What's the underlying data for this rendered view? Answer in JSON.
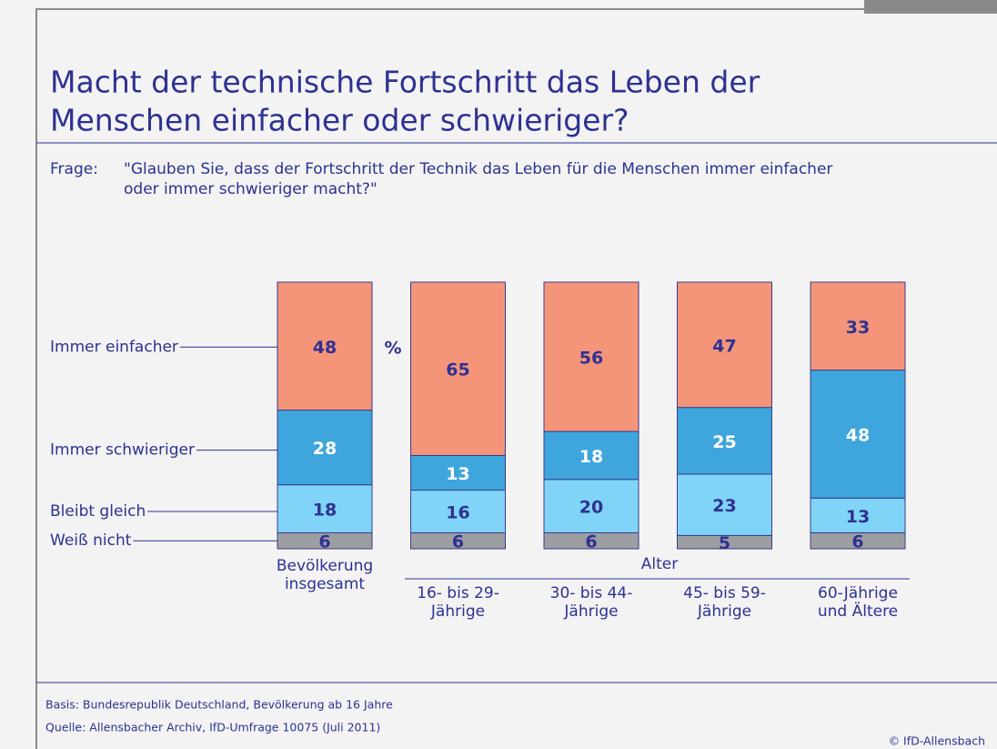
{
  "chart_data": {
    "type": "stacked_bar",
    "title": [
      "Macht der technische Fortschritt das Leben der",
      "Menschen einfacher oder schwieriger?"
    ],
    "question_label": "Frage:",
    "question": [
      "\"Glauben Sie, dass der Fortschritt der Technik das Leben für die Menschen immer einfacher",
      "oder immer schwieriger macht?\""
    ],
    "unit_label": "%",
    "group_label": "Alter",
    "categories": [
      [
        "Bevölkerung",
        "insgesamt"
      ],
      [
        "16- bis 29-",
        "Jährige"
      ],
      [
        "30- bis 44-",
        "Jährige"
      ],
      [
        "45- bis 59-",
        "Jährige"
      ],
      [
        "60-Jährige",
        "und Ältere"
      ]
    ],
    "series": [
      {
        "name": "Weiß nicht",
        "color": "#9d9ea2",
        "values": [
          6,
          6,
          6,
          5,
          6
        ]
      },
      {
        "name": "Bleibt gleich",
        "color": "#80d4f7",
        "values": [
          18,
          16,
          20,
          23,
          13
        ]
      },
      {
        "name": "Immer schwieriger",
        "color": "#3ea6dc",
        "values": [
          28,
          13,
          18,
          25,
          48
        ]
      },
      {
        "name": "Immer einfacher",
        "color": "#f4957a",
        "values": [
          48,
          65,
          56,
          47,
          33
        ]
      }
    ],
    "ylim": [
      0,
      100
    ],
    "notes": [
      "Basis: Bundesrepublik Deutschland, Bevölkerung ab 16 Jahre",
      "Quelle: Allensbacher Archiv, IfD-Umfrage 10075 (Juli 2011)"
    ],
    "credit": "© IfD-Allensbach"
  }
}
